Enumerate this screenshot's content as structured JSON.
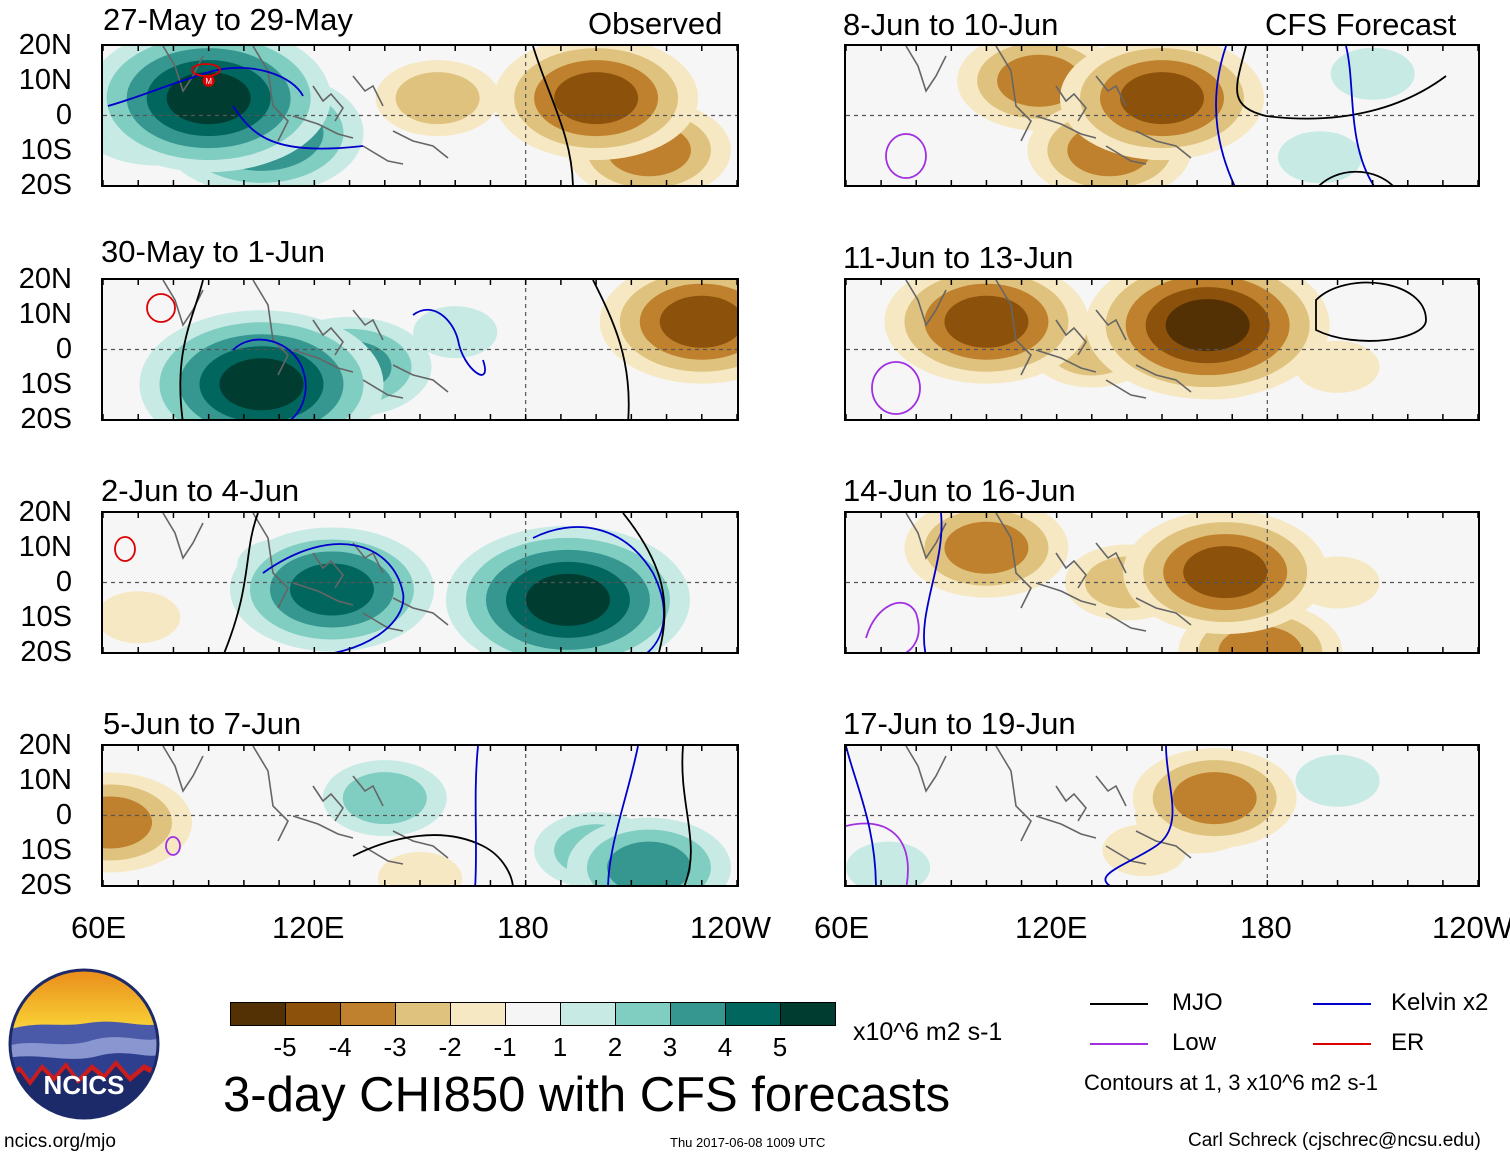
{
  "colors": {
    "neg5": "#543005",
    "neg4": "#8c510a",
    "neg3": "#bf812d",
    "neg2": "#dfc27d",
    "neg1": "#f6e8c3",
    "zero": "#f5f5f5",
    "pos1": "#c7eae5",
    "pos2": "#80cdc1",
    "pos3": "#35978f",
    "pos4": "#01665e",
    "pos5": "#003c30",
    "mjo": "#000000",
    "kelvin": "#0000cc",
    "low": "#a030e0",
    "er": "#dd0000",
    "land": "#666666"
  },
  "headers": {
    "observed": "Observed",
    "forecast": "CFS Forecast"
  },
  "panels": [
    {
      "title": "27-May to 29-May",
      "side": "observed"
    },
    {
      "title": "30-May to 1-Jun",
      "side": "observed"
    },
    {
      "title": "2-Jun to 4-Jun",
      "side": "observed"
    },
    {
      "title": "5-Jun to 7-Jun",
      "side": "observed"
    },
    {
      "title": "8-Jun to 10-Jun",
      "side": "forecast"
    },
    {
      "title": "11-Jun to 13-Jun",
      "side": "forecast"
    },
    {
      "title": "14-Jun to 16-Jun",
      "side": "forecast"
    },
    {
      "title": "17-Jun to 19-Jun",
      "side": "forecast"
    }
  ],
  "lat_labels": [
    "20N",
    "10N",
    "0",
    "10S",
    "20S"
  ],
  "lon_labels": [
    "60E",
    "120E",
    "180",
    "120W"
  ],
  "colorbar": {
    "labels": [
      "-5",
      "-4",
      "-3",
      "-2",
      "-1",
      "1",
      "2",
      "3",
      "4",
      "5"
    ],
    "units": "x10^6 m2 s-1"
  },
  "main_title": "3-day CHI850 with CFS forecasts",
  "legend": {
    "mjo": "MJO",
    "kelvin": "Kelvin x2",
    "low": "Low",
    "er": "ER",
    "note": "Contours at 1, 3 x10^6 m2 s-1"
  },
  "logo": {
    "text": "NCICS",
    "url": "ncics.org/mjo"
  },
  "timestamp": "Thu 2017-06-08 1009 UTC",
  "credit": "Carl Schreck (cjschrec@ncsu.edu)",
  "mjo_marker": "M",
  "chart_data": [
    {
      "type": "heatmap",
      "title": "27-May to 29-May",
      "units": "x10^6 m2 s-1",
      "x_range": [
        "60E",
        "120W"
      ],
      "y_range": [
        "20S",
        "20N"
      ],
      "features": [
        {
          "lon": 90,
          "lat": 5,
          "value": 5
        },
        {
          "lon": 105,
          "lat": -5,
          "value": 4
        },
        {
          "lon": 75,
          "lat": 0,
          "value": 3
        },
        {
          "lon": 155,
          "lat": 5,
          "value": -2
        },
        {
          "lon": 200,
          "lat": 5,
          "value": -4
        },
        {
          "lon": 215,
          "lat": -10,
          "value": -3
        }
      ]
    },
    {
      "type": "heatmap",
      "title": "30-May to 1-Jun",
      "units": "x10^6 m2 s-1",
      "x_range": [
        "60E",
        "120W"
      ],
      "y_range": [
        "20S",
        "20N"
      ],
      "features": [
        {
          "lon": 105,
          "lat": -10,
          "value": 5
        },
        {
          "lon": 130,
          "lat": -5,
          "value": 3
        },
        {
          "lon": 160,
          "lat": 5,
          "value": 1
        },
        {
          "lon": 230,
          "lat": 8,
          "value": -4
        },
        {
          "lon": 220,
          "lat": 10,
          "value": -2
        }
      ]
    },
    {
      "type": "heatmap",
      "title": "2-Jun to 4-Jun",
      "units": "x10^6 m2 s-1",
      "x_range": [
        "60E",
        "120W"
      ],
      "y_range": [
        "20S",
        "20N"
      ],
      "features": [
        {
          "lon": 125,
          "lat": -2,
          "value": 4
        },
        {
          "lon": 192,
          "lat": -5,
          "value": 5
        },
        {
          "lon": 195,
          "lat": 0,
          "value": 3
        },
        {
          "lon": 110,
          "lat": 5,
          "value": 1
        },
        {
          "lon": 70,
          "lat": -10,
          "value": -1
        }
      ]
    },
    {
      "type": "heatmap",
      "title": "5-Jun to 7-Jun",
      "units": "x10^6 m2 s-1",
      "x_range": [
        "60E",
        "120W"
      ],
      "y_range": [
        "20S",
        "20N"
      ],
      "features": [
        {
          "lon": 140,
          "lat": 5,
          "value": 2
        },
        {
          "lon": 200,
          "lat": -10,
          "value": 2
        },
        {
          "lon": 215,
          "lat": -15,
          "value": 3
        },
        {
          "lon": 62,
          "lat": -2,
          "value": -3
        },
        {
          "lon": 150,
          "lat": -18,
          "value": -1
        }
      ]
    },
    {
      "type": "heatmap",
      "title": "8-Jun to 10-Jun",
      "units": "x10^6 m2 s-1",
      "x_range": [
        "60E",
        "120W"
      ],
      "y_range": [
        "20S",
        "20N"
      ],
      "features": [
        {
          "lon": 115,
          "lat": 10,
          "value": -3
        },
        {
          "lon": 150,
          "lat": 5,
          "value": -4
        },
        {
          "lon": 135,
          "lat": -10,
          "value": -3
        },
        {
          "lon": 195,
          "lat": -12,
          "value": 1
        },
        {
          "lon": 210,
          "lat": 12,
          "value": 1
        }
      ]
    },
    {
      "type": "heatmap",
      "title": "11-Jun to 13-Jun",
      "units": "x10^6 m2 s-1",
      "x_range": [
        "60E",
        "120W"
      ],
      "y_range": [
        "20S",
        "20N"
      ],
      "features": [
        {
          "lon": 100,
          "lat": 8,
          "value": -4
        },
        {
          "lon": 163,
          "lat": 7,
          "value": -5
        },
        {
          "lon": 165,
          "lat": 0,
          "value": -3
        },
        {
          "lon": 130,
          "lat": 0,
          "value": -2
        },
        {
          "lon": 200,
          "lat": -5,
          "value": -1
        }
      ]
    },
    {
      "type": "heatmap",
      "title": "14-Jun to 16-Jun",
      "units": "x10^6 m2 s-1",
      "x_range": [
        "60E",
        "120W"
      ],
      "y_range": [
        "20S",
        "20N"
      ],
      "features": [
        {
          "lon": 168,
          "lat": 3,
          "value": -4
        },
        {
          "lon": 100,
          "lat": 10,
          "value": -3
        },
        {
          "lon": 140,
          "lat": 0,
          "value": -2
        },
        {
          "lon": 200,
          "lat": 0,
          "value": -1
        },
        {
          "lon": 178,
          "lat": -20,
          "value": -3
        }
      ]
    },
    {
      "type": "heatmap",
      "title": "17-Jun to 19-Jun",
      "units": "x10^6 m2 s-1",
      "x_range": [
        "60E",
        "120W"
      ],
      "y_range": [
        "20S",
        "20N"
      ],
      "features": [
        {
          "lon": 165,
          "lat": 5,
          "value": -3
        },
        {
          "lon": 160,
          "lat": 0,
          "value": -2
        },
        {
          "lon": 145,
          "lat": -10,
          "value": -1
        },
        {
          "lon": 72,
          "lat": -15,
          "value": 1
        },
        {
          "lon": 200,
          "lat": 10,
          "value": 1
        }
      ]
    }
  ]
}
